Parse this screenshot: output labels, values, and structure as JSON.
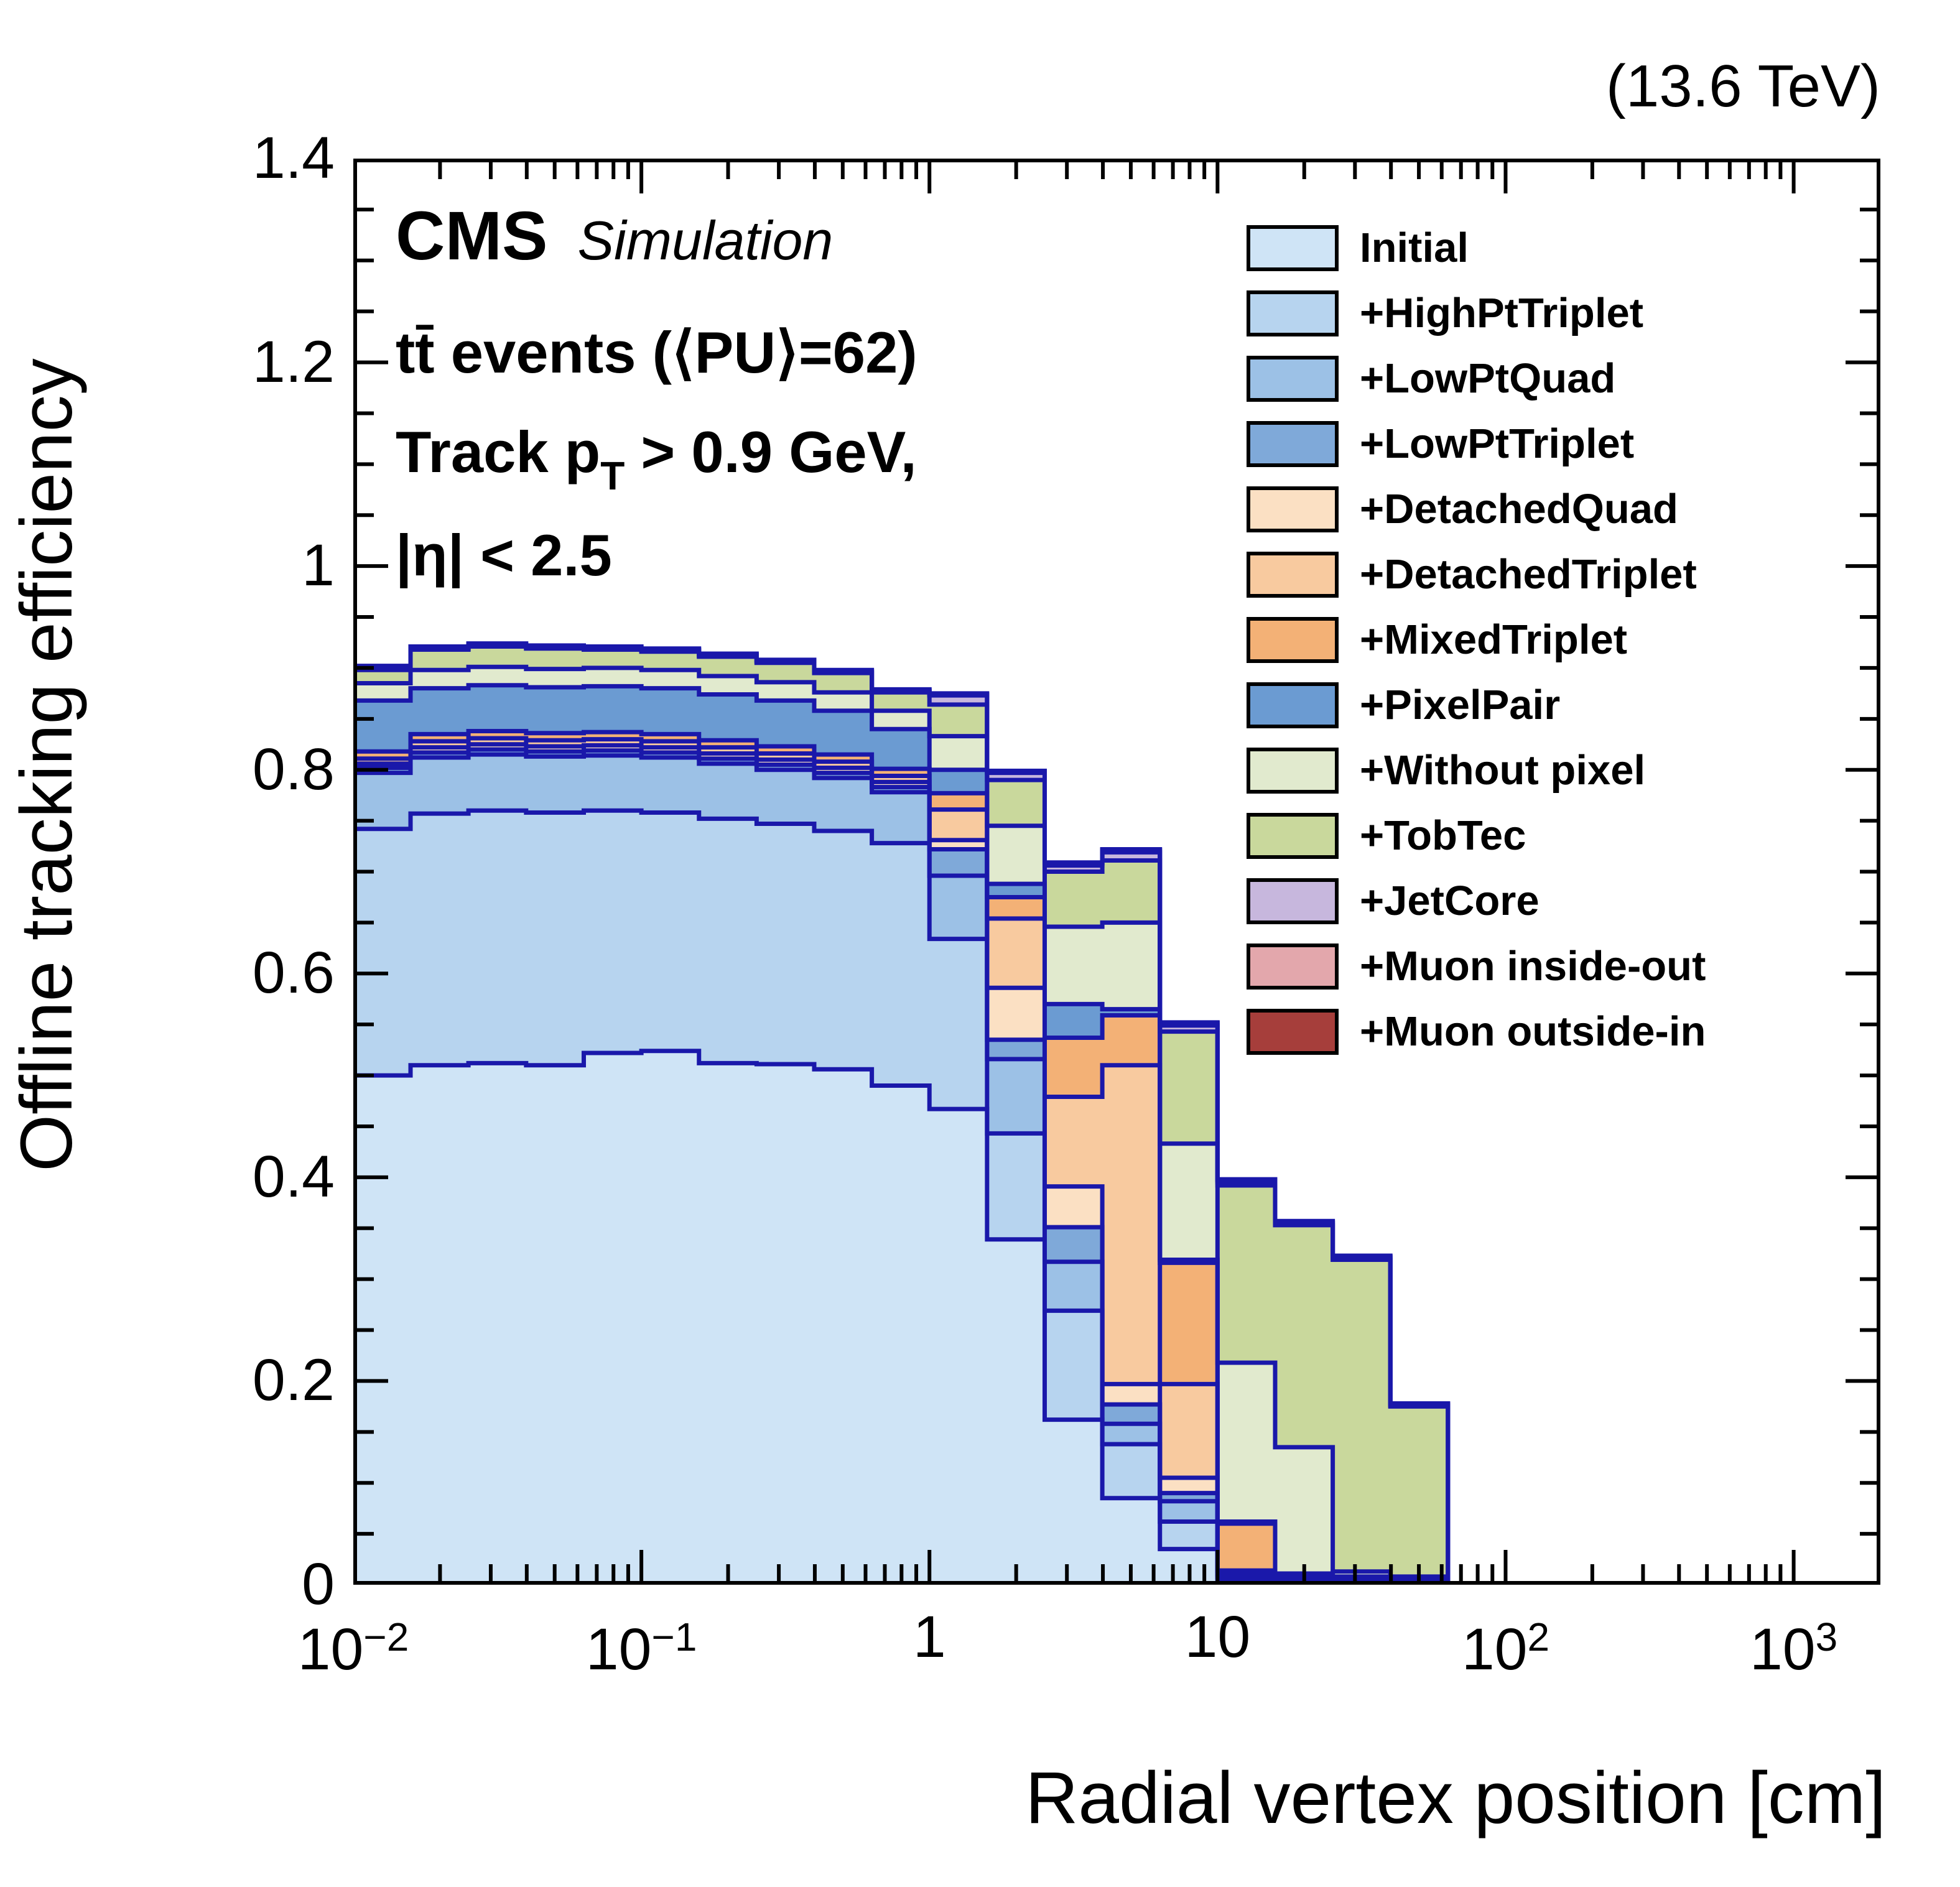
{
  "header": {
    "energy_label": "(13.6 TeV)"
  },
  "plot_text": {
    "experiment": "CMS",
    "simulation": "Simulation",
    "events_line": "tt̄ events (⟨PU⟩=62)",
    "track_prefix": "Track p",
    "track_sub": "T",
    "track_suffix": " > 0.9 GeV,",
    "eta_line": "|η| < 2.5"
  },
  "axes": {
    "x": {
      "title": "Radial vertex position [cm]",
      "scale": "log",
      "min": 0.01,
      "max": 2000,
      "major_ticks": [
        {
          "value": 0.01,
          "text": "10",
          "sup": "−2"
        },
        {
          "value": 0.1,
          "text": "10",
          "sup": "−1"
        },
        {
          "value": 1,
          "text": "1",
          "sup": ""
        },
        {
          "value": 10,
          "text": "10",
          "sup": ""
        },
        {
          "value": 100,
          "text": "10",
          "sup": "2"
        },
        {
          "value": 1000,
          "text": "10",
          "sup": "3"
        }
      ]
    },
    "y": {
      "title": "Offline tracking efficiency",
      "min": 0,
      "max": 1.4,
      "major_ticks": [
        {
          "value": 0.0,
          "text": "0"
        },
        {
          "value": 0.2,
          "text": "0.2"
        },
        {
          "value": 0.4,
          "text": "0.4"
        },
        {
          "value": 0.6,
          "text": "0.6"
        },
        {
          "value": 0.8,
          "text": "0.8"
        },
        {
          "value": 1.0,
          "text": "1"
        },
        {
          "value": 1.2,
          "text": "1.2"
        },
        {
          "value": 1.4,
          "text": "1.4"
        }
      ],
      "minor_step": 0.05
    }
  },
  "legend": {
    "items": [
      {
        "label": "Initial",
        "color": "#cfe4f6"
      },
      {
        "label": "+HighPtTriplet",
        "color": "#b7d4ef"
      },
      {
        "label": "+LowPtQuad",
        "color": "#9cc1e6"
      },
      {
        "label": "+LowPtTriplet",
        "color": "#7fa9d9"
      },
      {
        "label": "+DetachedQuad",
        "color": "#fbe0c3"
      },
      {
        "label": "+DetachedTriplet",
        "color": "#f8ca9f"
      },
      {
        "label": "+MixedTriplet",
        "color": "#f3b176"
      },
      {
        "label": "+PixelPair",
        "color": "#6b9bd2"
      },
      {
        "label": "+Without pixel",
        "color": "#e1eace"
      },
      {
        "label": "+TobTec",
        "color": "#c9d89c"
      },
      {
        "label": "+JetCore",
        "color": "#c7b7dd"
      },
      {
        "label": "+Muon inside-out",
        "color": "#e3a7ac"
      },
      {
        "label": "+Muon outside-in",
        "color": "#a63e3b"
      }
    ]
  },
  "chart_data": {
    "type": "stacked_step_histogram",
    "title": "CMS Simulation, tt̄ events (⟨PU⟩=62), Track pT > 0.9 GeV, |η| < 2.5",
    "xlabel": "Radial vertex position [cm]",
    "ylabel": "Offline tracking efficiency",
    "xscale": "log",
    "xlim": [
      0.01,
      2000
    ],
    "ylim": [
      0,
      1.4
    ],
    "grid": false,
    "legend_position": "upper right",
    "outline_color": "#1a18aa",
    "frame_color": "#000000",
    "note": "values are cumulative stacked efficiencies per bin; bins are log-uniform (5 per decade) from 0.01 to 63.1 cm",
    "bin_edges": [
      0.01,
      0.0158,
      0.0251,
      0.0398,
      0.0631,
      0.1,
      0.1585,
      0.2512,
      0.3981,
      0.631,
      1.0,
      1.585,
      2.512,
      3.981,
      6.31,
      10.0,
      15.85,
      25.12,
      39.81,
      63.1
    ],
    "series": [
      {
        "name": "Initial",
        "color": "#cfe4f6",
        "cumulative": [
          0.5,
          0.51,
          0.512,
          0.51,
          0.522,
          0.524,
          0.512,
          0.511,
          0.506,
          0.49,
          0.467,
          0.339,
          0.162,
          0.085,
          0.035,
          0.003,
          0.002,
          0.002,
          0.001
        ]
      },
      {
        "name": "+HighPtTriplet",
        "color": "#b7d4ef",
        "cumulative": [
          0.742,
          0.757,
          0.76,
          0.758,
          0.76,
          0.758,
          0.752,
          0.747,
          0.74,
          0.728,
          0.634,
          0.443,
          0.269,
          0.138,
          0.062,
          0.005,
          0.004,
          0.003,
          0.002
        ]
      },
      {
        "name": "+LowPtQuad",
        "color": "#9cc1e6",
        "cumulative": [
          0.797,
          0.812,
          0.815,
          0.813,
          0.814,
          0.812,
          0.806,
          0.8,
          0.792,
          0.778,
          0.696,
          0.516,
          0.317,
          0.158,
          0.082,
          0.007,
          0.005,
          0.004,
          0.003
        ]
      },
      {
        "name": "+LowPtTriplet",
        "color": "#7fa9d9",
        "cumulative": [
          0.802,
          0.817,
          0.82,
          0.818,
          0.819,
          0.817,
          0.811,
          0.805,
          0.797,
          0.783,
          0.722,
          0.535,
          0.351,
          0.177,
          0.09,
          0.008,
          0.006,
          0.005,
          0.003
        ]
      },
      {
        "name": "+DetachedQuad",
        "color": "#fbe0c3",
        "cumulative": [
          0.806,
          0.822,
          0.825,
          0.823,
          0.824,
          0.822,
          0.816,
          0.81,
          0.802,
          0.788,
          0.731,
          0.586,
          0.391,
          0.197,
          0.105,
          0.01,
          0.007,
          0.005,
          0.004
        ]
      },
      {
        "name": "+DetachedTriplet",
        "color": "#f8ca9f",
        "cumulative": [
          0.811,
          0.828,
          0.831,
          0.829,
          0.83,
          0.828,
          0.822,
          0.816,
          0.808,
          0.794,
          0.761,
          0.654,
          0.479,
          0.51,
          0.197,
          0.014,
          0.008,
          0.006,
          0.004
        ]
      },
      {
        "name": "+MixedTriplet",
        "color": "#f3b176",
        "cumulative": [
          0.818,
          0.835,
          0.838,
          0.836,
          0.837,
          0.835,
          0.829,
          0.823,
          0.815,
          0.801,
          0.777,
          0.675,
          0.537,
          0.559,
          0.316,
          0.06,
          0.01,
          0.007,
          0.005
        ]
      },
      {
        "name": "+PixelPair",
        "color": "#6b9bd2",
        "cumulative": [
          0.868,
          0.88,
          0.883,
          0.881,
          0.882,
          0.88,
          0.874,
          0.868,
          0.858,
          0.84,
          0.8,
          0.688,
          0.57,
          0.565,
          0.319,
          0.062,
          0.011,
          0.008,
          0.005
        ]
      },
      {
        "name": "+Without pixel",
        "color": "#e1eace",
        "cumulative": [
          0.885,
          0.898,
          0.901,
          0.899,
          0.9,
          0.898,
          0.892,
          0.886,
          0.876,
          0.858,
          0.833,
          0.745,
          0.646,
          0.65,
          0.433,
          0.218,
          0.135,
          0.013,
          0.008
        ]
      },
      {
        "name": "+TobTec",
        "color": "#c9d89c",
        "cumulative": [
          0.898,
          0.918,
          0.921,
          0.919,
          0.918,
          0.916,
          0.911,
          0.905,
          0.895,
          0.876,
          0.864,
          0.79,
          0.7,
          0.711,
          0.543,
          0.392,
          0.353,
          0.319,
          0.175
        ]
      },
      {
        "name": "+JetCore",
        "color": "#c7b7dd",
        "cumulative": [
          0.9,
          0.919,
          0.922,
          0.92,
          0.919,
          0.917,
          0.912,
          0.906,
          0.896,
          0.877,
          0.873,
          0.797,
          0.706,
          0.719,
          0.549,
          0.395,
          0.355,
          0.321,
          0.176
        ]
      },
      {
        "name": "+Muon inside-out",
        "color": "#e3a7ac",
        "cumulative": [
          0.901,
          0.92,
          0.923,
          0.921,
          0.92,
          0.918,
          0.913,
          0.907,
          0.897,
          0.878,
          0.874,
          0.798,
          0.708,
          0.721,
          0.551,
          0.397,
          0.356,
          0.322,
          0.177
        ]
      },
      {
        "name": "+Muon outside-in",
        "color": "#a63e3b",
        "cumulative": [
          0.902,
          0.921,
          0.924,
          0.922,
          0.921,
          0.919,
          0.914,
          0.908,
          0.898,
          0.879,
          0.875,
          0.799,
          0.709,
          0.722,
          0.552,
          0.398,
          0.357,
          0.323,
          0.178
        ]
      }
    ]
  }
}
